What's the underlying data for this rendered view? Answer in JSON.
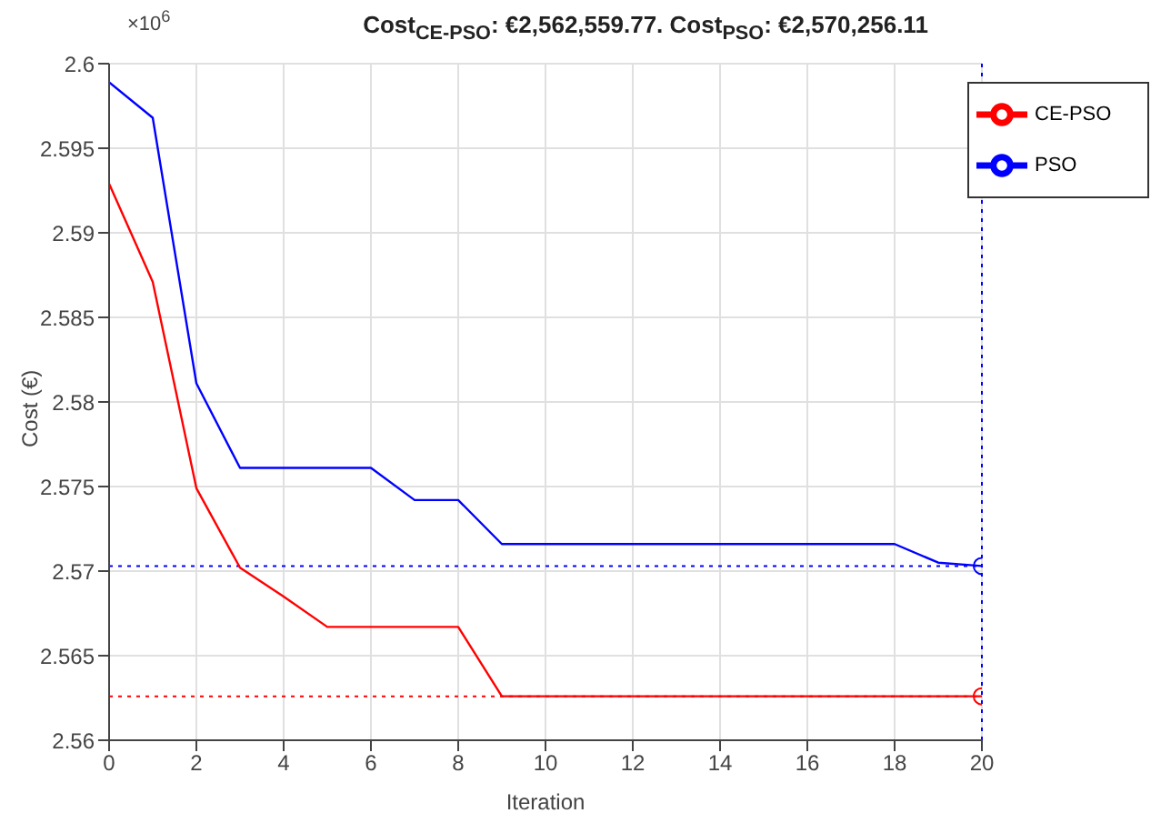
{
  "chart_data": {
    "type": "line",
    "title": "Cost$_{CE-PSO}$: €2,562,559.77. Cost$_{PSO}$: €2,570,256.11",
    "xlabel": "Iteration",
    "ylabel": "Cost (€)",
    "annotations": [
      "×10$^{6}$"
    ],
    "x": [
      0,
      1,
      2,
      3,
      4,
      5,
      6,
      7,
      8,
      9,
      10,
      11,
      12,
      13,
      14,
      15,
      16,
      17,
      18,
      19,
      20
    ],
    "series": [
      {
        "name": "PSO",
        "color": "#0000ff",
        "values": [
          2.5989,
          2.5968,
          2.5811,
          2.5761,
          2.5761,
          2.5761,
          2.5761,
          2.5742,
          2.5742,
          2.5716,
          2.5716,
          2.5716,
          2.5716,
          2.5716,
          2.5716,
          2.5716,
          2.5716,
          2.5716,
          2.5716,
          2.5705,
          2.5703
        ]
      },
      {
        "name": "CE-PSO",
        "color": "#ff0000",
        "values": [
          2.5929,
          2.5871,
          2.5749,
          2.5702,
          2.5685,
          2.5667,
          2.5667,
          2.5667,
          2.5667,
          2.5626,
          2.5626,
          2.5626,
          2.5626,
          2.5626,
          2.5626,
          2.5626,
          2.5626,
          2.5626,
          2.5626,
          2.5626,
          2.5626
        ]
      },
      {
        "type": "scatter",
        "color": "#0000ff",
        "x": [
          20
        ],
        "values": [
          2.5703
        ],
        "marker": "circle"
      },
      {
        "type": "scatter",
        "color": "#ff0000",
        "x": [
          20
        ],
        "values": [
          2.5626
        ],
        "marker": "circle"
      }
    ],
    "ref_lines": [
      {
        "axis": "y",
        "value": 2.5703,
        "color": "#0000ff",
        "line_style": "dotted"
      },
      {
        "axis": "y",
        "value": 2.5626,
        "color": "#ff0000",
        "line_style": "dotted"
      },
      {
        "axis": "x",
        "value": 20,
        "color": "#0000ff",
        "line_style": "dotted"
      }
    ],
    "xlim": [
      0,
      20
    ],
    "xticks": [
      0,
      2,
      4,
      6,
      8,
      10,
      12,
      14,
      16,
      18,
      20
    ],
    "ylim": [
      2.56,
      2.6
    ],
    "yticks": [
      2.56,
      2.565,
      2.57,
      2.575,
      2.58,
      2.585,
      2.59,
      2.595,
      2.6
    ],
    "grid": true,
    "legend": "top right",
    "marker": "none",
    "line_style": "solid"
  }
}
